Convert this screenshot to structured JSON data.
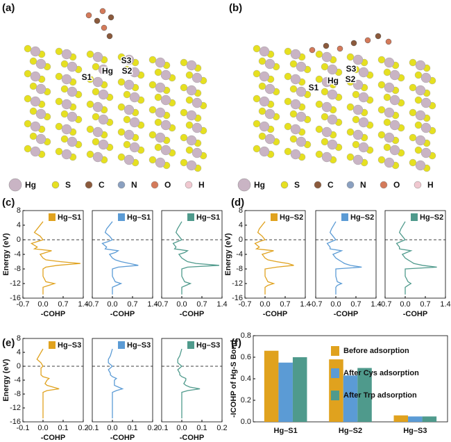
{
  "panel_labels": [
    "(a)",
    "(b)",
    "(c)",
    "(d)",
    "(e)",
    "(f)"
  ],
  "structure_labels": [
    [
      "S1",
      "Hg",
      "S2",
      "S3"
    ],
    [
      "S1",
      "Hg",
      "S2",
      "S3"
    ]
  ],
  "element_legend": [
    {
      "name": "Hg",
      "color": "#c9b4c4"
    },
    {
      "name": "S",
      "color": "#e6e020"
    },
    {
      "name": "C",
      "color": "#8b5a3c"
    },
    {
      "name": "N",
      "color": "#8aa0c0"
    },
    {
      "name": "O",
      "color": "#d47a5a"
    },
    {
      "name": "H",
      "color": "#f0c8d0"
    }
  ],
  "chart_data": [
    {
      "type": "cohp",
      "energy": [
        -15,
        -13,
        -12.5,
        -12,
        -11.5,
        -10,
        -8,
        -7.5,
        -7,
        -6.5,
        -6,
        -5.5,
        -5,
        -4,
        -3.5,
        -3,
        -2.5,
        -2,
        -1,
        -0.5,
        0,
        1,
        2,
        3,
        5
      ],
      "series": [
        {
          "name": "Hg–S1",
          "color": "#e0a21e",
          "values": [
            0,
            0,
            0.2,
            0.4,
            0.1,
            0,
            0,
            0.1,
            0.5,
            1.3,
            0.6,
            0.1,
            0,
            -0.1,
            0.1,
            0.3,
            -0.3,
            -0.2,
            -0.4,
            -0.2,
            0,
            -0.1,
            -0.3,
            -0.2,
            0
          ]
        }
      ],
      "xlim": [
        -0.7,
        1.4
      ],
      "xticks": [
        -0.7,
        {
          "value": 0,
          "label": "0.0"
        },
        0.7,
        1.4
      ],
      "ylim": [
        -16,
        8
      ],
      "yticks": [
        -16,
        -12,
        -8,
        -4,
        0,
        4,
        8
      ],
      "xlabel": "-COHP",
      "ylabel": "Energy (eV)",
      "fermi_level": 0
    },
    {
      "type": "cohp",
      "energy": [
        -15,
        -13,
        -12.5,
        -12,
        -11.5,
        -10,
        -8,
        -7.5,
        -7,
        -6.5,
        -6,
        -5.5,
        -5,
        -4,
        -3.5,
        -3,
        -2.5,
        -2,
        -1,
        -0.5,
        0,
        1,
        2,
        3,
        5
      ],
      "series": [
        {
          "name": "Hg–S1",
          "color": "#5b9bd5",
          "values": [
            0,
            0,
            0.15,
            0.3,
            0.1,
            0,
            0,
            0.2,
            0.9,
            0.6,
            0.3,
            0.1,
            0,
            -0.1,
            0.1,
            0.2,
            -0.25,
            -0.2,
            -0.35,
            -0.15,
            0,
            -0.1,
            -0.25,
            -0.2,
            0
          ]
        }
      ],
      "xlim": [
        -0.7,
        1.4
      ],
      "xticks": [
        -0.7,
        {
          "value": 0,
          "label": "0.0"
        },
        0.7,
        1.4
      ],
      "ylim": [
        -16,
        8
      ],
      "xlabel": "-COHP",
      "fermi_level": 0
    },
    {
      "type": "cohp",
      "energy": [
        -15,
        -13,
        -12.5,
        -12,
        -11.5,
        -10,
        -8,
        -7.5,
        -7,
        -6.5,
        -6,
        -5.5,
        -5,
        -4,
        -3.5,
        -3,
        -2.5,
        -2,
        -1,
        -0.5,
        0,
        1,
        2,
        3,
        5
      ],
      "series": [
        {
          "name": "Hg–S1",
          "color": "#4f9a8c",
          "values": [
            0,
            0,
            0.15,
            0.3,
            0.1,
            0,
            0,
            0.2,
            1.3,
            0.5,
            0.2,
            0.1,
            0,
            -0.1,
            0.1,
            0.2,
            -0.25,
            -0.2,
            -0.3,
            -0.15,
            0,
            -0.1,
            -0.2,
            -0.15,
            0
          ]
        }
      ],
      "xlim": [
        -0.7,
        1.4
      ],
      "xticks": [
        -0.7,
        {
          "value": 0,
          "label": "0.0"
        },
        0.7,
        1.4
      ],
      "ylim": [
        -16,
        8
      ],
      "xlabel": "-COHP",
      "fermi_level": 0
    },
    {
      "type": "cohp",
      "energy": [
        -15,
        -13,
        -12.5,
        -12,
        -11.5,
        -10,
        -8,
        -7.5,
        -7,
        -6.5,
        -6,
        -5.5,
        -5,
        -4,
        -3.5,
        -3,
        -2.5,
        -2,
        -1,
        -0.5,
        0,
        1,
        2,
        3,
        5
      ],
      "series": [
        {
          "name": "Hg–S2",
          "color": "#e0a21e",
          "values": [
            0,
            0,
            0.1,
            0.3,
            0.1,
            0,
            0,
            0.4,
            1.0,
            0.8,
            0.4,
            0.1,
            0,
            -0.1,
            0.1,
            0.3,
            -0.3,
            -0.2,
            -0.35,
            -0.2,
            0,
            -0.1,
            -0.25,
            -0.2,
            0
          ]
        }
      ],
      "xlim": [
        -0.7,
        1.4
      ],
      "xticks": [
        -0.7,
        {
          "value": 0,
          "label": "0.0"
        },
        0.7,
        1.4
      ],
      "ylim": [
        -16,
        8
      ],
      "yticks": [
        -16,
        -12,
        -8,
        -4,
        0,
        4,
        8
      ],
      "xlabel": "-COHP",
      "ylabel": "Energy (eV)",
      "fermi_level": 0
    },
    {
      "type": "cohp",
      "energy": [
        -15,
        -13,
        -12.5,
        -12,
        -11.5,
        -10,
        -8,
        -7.5,
        -7,
        -6.5,
        -6,
        -5.5,
        -5,
        -4,
        -3.5,
        -3,
        -2.5,
        -2,
        -1,
        -0.5,
        0,
        1,
        2,
        3,
        5
      ],
      "series": [
        {
          "name": "Hg–S2",
          "color": "#5b9bd5",
          "values": [
            0,
            0,
            0.05,
            0.2,
            0.05,
            0,
            0,
            0.9,
            0.5,
            0.3,
            0.2,
            0.1,
            0,
            -0.1,
            0.05,
            0.2,
            -0.2,
            -0.2,
            -0.3,
            -0.15,
            0,
            -0.1,
            -0.2,
            -0.15,
            0
          ]
        }
      ],
      "xlim": [
        -0.7,
        1.4
      ],
      "xticks": [
        -0.7,
        {
          "value": 0,
          "label": "0.0"
        },
        0.7,
        1.4
      ],
      "ylim": [
        -16,
        8
      ],
      "xlabel": "-COHP",
      "fermi_level": 0
    },
    {
      "type": "cohp",
      "energy": [
        -15,
        -13,
        -12.5,
        -12,
        -11.5,
        -10,
        -8,
        -7.5,
        -7,
        -6.5,
        -6,
        -5.5,
        -5,
        -4,
        -3.5,
        -3,
        -2.5,
        -2,
        -1,
        -0.5,
        0,
        1,
        2,
        3,
        5
      ],
      "series": [
        {
          "name": "Hg–S2",
          "color": "#4f9a8c",
          "values": [
            0,
            0,
            0.1,
            0.2,
            0.1,
            0,
            0,
            1.1,
            0.6,
            0.3,
            0.2,
            0.1,
            0,
            -0.1,
            0.05,
            0.2,
            -0.2,
            -0.2,
            -0.3,
            -0.15,
            0,
            -0.1,
            -0.2,
            -0.15,
            0
          ]
        }
      ],
      "xlim": [
        -0.7,
        1.4
      ],
      "xticks": [
        -0.7,
        {
          "value": 0,
          "label": "0.0"
        },
        0.7,
        1.4
      ],
      "ylim": [
        -16,
        8
      ],
      "xlabel": "-COHP",
      "fermi_level": 0
    },
    {
      "type": "cohp",
      "energy": [
        -15,
        -13,
        -12.5,
        -12,
        -11.5,
        -10,
        -8,
        -7.5,
        -7,
        -6.5,
        -6,
        -5.5,
        -5,
        -4,
        -3.5,
        -3,
        -2.5,
        -2,
        -1,
        -0.5,
        0,
        1,
        2,
        3,
        5
      ],
      "series": [
        {
          "name": "Hg–S3",
          "color": "#e0a21e",
          "values": [
            0,
            0,
            0,
            0,
            0,
            0,
            0,
            0,
            0.02,
            0.08,
            0.05,
            0.02,
            0.01,
            0.02,
            0.03,
            0,
            -0.01,
            -0.01,
            -0.01,
            -0.01,
            0,
            -0.01,
            -0.03,
            -0.02,
            0
          ]
        }
      ],
      "xlim": [
        -0.1,
        0.2
      ],
      "xticks": [
        -0.1,
        {
          "value": 0,
          "label": "0.0"
        },
        0.1,
        0.2
      ],
      "ylim": [
        -16,
        8
      ],
      "yticks": [
        -16,
        -12,
        -8,
        -4,
        0,
        4,
        8
      ],
      "xlabel": "-COHP",
      "ylabel": "Energy (eV)",
      "fermi_level": 0
    },
    {
      "type": "cohp",
      "energy": [
        -15,
        -13,
        -12.5,
        -12,
        -11.5,
        -10,
        -8,
        -7.5,
        -7,
        -6.5,
        -6,
        -5.5,
        -5,
        -4,
        -3.5,
        -3,
        -2.5,
        -2,
        -1,
        -0.5,
        0,
        1,
        2,
        3,
        5
      ],
      "series": [
        {
          "name": "Hg–S3",
          "color": "#5b9bd5",
          "values": [
            0,
            0,
            0,
            0,
            0,
            0,
            0,
            0,
            0.02,
            0.05,
            0.03,
            0.01,
            0.01,
            0.01,
            0.02,
            0,
            -0.01,
            -0.01,
            -0.02,
            -0.01,
            0,
            -0.02,
            -0.02,
            -0.01,
            0
          ]
        }
      ],
      "xlim": [
        -0.1,
        0.2
      ],
      "xticks": [
        -0.1,
        {
          "value": 0,
          "label": "0.0"
        },
        0.1,
        0.2
      ],
      "ylim": [
        -16,
        8
      ],
      "xlabel": "-COHP",
      "fermi_level": 0
    },
    {
      "type": "cohp",
      "energy": [
        -15,
        -13,
        -12.5,
        -12,
        -11.5,
        -10,
        -8,
        -7.5,
        -7,
        -6.5,
        -6,
        -5.5,
        -5,
        -4,
        -3.5,
        -3,
        -2.5,
        -2,
        -1,
        -0.5,
        0,
        1,
        2,
        3,
        5
      ],
      "series": [
        {
          "name": "Hg–S3",
          "color": "#4f9a8c",
          "values": [
            0,
            0,
            0,
            0,
            0,
            0,
            0,
            0,
            0.03,
            0.09,
            0.04,
            0.02,
            0.01,
            0.02,
            0.02,
            0,
            -0.01,
            -0.01,
            -0.02,
            -0.01,
            0,
            -0.02,
            -0.02,
            -0.01,
            0
          ]
        }
      ],
      "xlim": [
        -0.1,
        0.2
      ],
      "xticks": [
        -0.1,
        {
          "value": 0,
          "label": "0.0"
        },
        0.1,
        0.2
      ],
      "ylim": [
        -16,
        8
      ],
      "xlabel": "-COHP",
      "fermi_level": 0
    },
    {
      "type": "bar",
      "categories": [
        "Hg–S1",
        "Hg–S2",
        "Hg–S3"
      ],
      "series": [
        {
          "name": "Before adsorption",
          "color": "#e0a21e",
          "values": [
            0.66,
            0.58,
            0.06
          ]
        },
        {
          "name": "After Cys adsorption",
          "color": "#5b9bd5",
          "values": [
            0.55,
            0.43,
            0.05
          ]
        },
        {
          "name": "After Trp adsorption",
          "color": "#4f9a8c",
          "values": [
            0.6,
            0.5,
            0.05
          ]
        }
      ],
      "ylim": [
        0,
        0.8
      ],
      "yticks": [
        {
          "value": 0,
          "label": "0.0"
        },
        0.2,
        0.4,
        0.6,
        0.8
      ],
      "ylabel": "-ICOHP of Hg-S Bond",
      "legend": "upper right"
    }
  ]
}
